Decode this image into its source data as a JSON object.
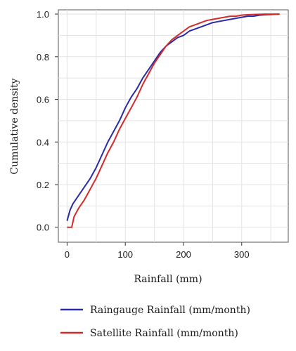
{
  "chart_data": {
    "type": "line",
    "title": "",
    "xlabel": "Rainfall (mm)",
    "ylabel": "Cumulative density",
    "xlim": [
      -15,
      380
    ],
    "ylim": [
      -0.07,
      1.02
    ],
    "x_ticks": [
      0,
      100,
      200,
      300
    ],
    "y_ticks": [
      0.0,
      0.2,
      0.4,
      0.6,
      0.8,
      1.0
    ],
    "x_tick_labels": [
      "0",
      "100",
      "200",
      "300"
    ],
    "y_tick_labels": [
      "0.0",
      "0.2",
      "0.4",
      "0.6",
      "0.8",
      "1.0"
    ],
    "grid": true,
    "legend_position": "bottom",
    "series": [
      {
        "name": "Raingauge Rainfall (mm/month)",
        "color": "#2b2ba8",
        "points": [
          [
            0,
            0.03
          ],
          [
            5,
            0.08
          ],
          [
            10,
            0.11
          ],
          [
            20,
            0.15
          ],
          [
            30,
            0.19
          ],
          [
            40,
            0.23
          ],
          [
            50,
            0.28
          ],
          [
            60,
            0.34
          ],
          [
            70,
            0.4
          ],
          [
            80,
            0.45
          ],
          [
            90,
            0.5
          ],
          [
            100,
            0.56
          ],
          [
            110,
            0.61
          ],
          [
            120,
            0.65
          ],
          [
            130,
            0.7
          ],
          [
            140,
            0.74
          ],
          [
            150,
            0.78
          ],
          [
            160,
            0.82
          ],
          [
            170,
            0.85
          ],
          [
            180,
            0.87
          ],
          [
            190,
            0.89
          ],
          [
            200,
            0.9
          ],
          [
            210,
            0.92
          ],
          [
            220,
            0.93
          ],
          [
            230,
            0.94
          ],
          [
            240,
            0.95
          ],
          [
            250,
            0.96
          ],
          [
            260,
            0.965
          ],
          [
            270,
            0.97
          ],
          [
            280,
            0.975
          ],
          [
            290,
            0.98
          ],
          [
            300,
            0.985
          ],
          [
            310,
            0.99
          ],
          [
            320,
            0.99
          ],
          [
            330,
            0.995
          ],
          [
            340,
            0.997
          ],
          [
            350,
            0.998
          ],
          [
            365,
            1.0
          ]
        ]
      },
      {
        "name": "Satellite Rainfall (mm/month)",
        "color": "#d42a2a",
        "points": [
          [
            0,
            0.0
          ],
          [
            8,
            0.0
          ],
          [
            12,
            0.05
          ],
          [
            20,
            0.09
          ],
          [
            30,
            0.13
          ],
          [
            40,
            0.18
          ],
          [
            50,
            0.23
          ],
          [
            60,
            0.29
          ],
          [
            70,
            0.35
          ],
          [
            80,
            0.4
          ],
          [
            90,
            0.46
          ],
          [
            100,
            0.51
          ],
          [
            110,
            0.56
          ],
          [
            120,
            0.61
          ],
          [
            130,
            0.67
          ],
          [
            140,
            0.72
          ],
          [
            150,
            0.77
          ],
          [
            160,
            0.81
          ],
          [
            170,
            0.85
          ],
          [
            180,
            0.88
          ],
          [
            190,
            0.9
          ],
          [
            200,
            0.92
          ],
          [
            210,
            0.94
          ],
          [
            220,
            0.95
          ],
          [
            230,
            0.96
          ],
          [
            240,
            0.97
          ],
          [
            250,
            0.975
          ],
          [
            260,
            0.98
          ],
          [
            270,
            0.985
          ],
          [
            280,
            0.99
          ],
          [
            290,
            0.99
          ],
          [
            300,
            0.995
          ],
          [
            310,
            0.997
          ],
          [
            320,
            0.998
          ],
          [
            340,
            1.0
          ],
          [
            365,
            1.0
          ]
        ]
      }
    ]
  }
}
